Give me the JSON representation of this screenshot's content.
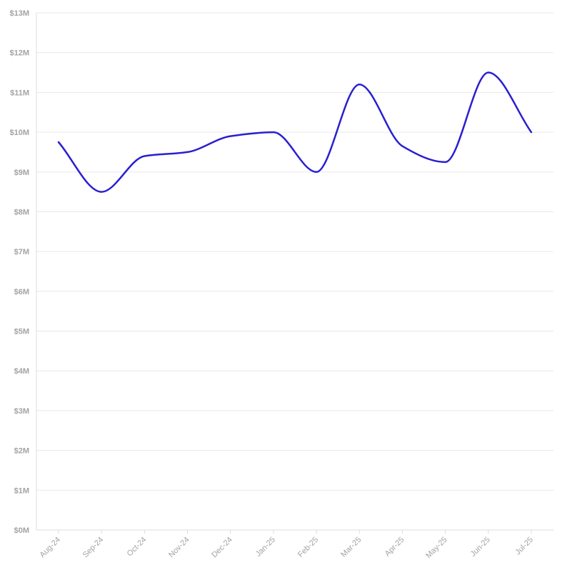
{
  "chart_data": {
    "type": "line",
    "title": "",
    "xlabel": "",
    "ylabel": "",
    "categories": [
      "Aug-24",
      "Sep-24",
      "Oct-24",
      "Nov-24",
      "Dec-24",
      "Jan-25",
      "Feb-25",
      "Mar-25",
      "Apr-25",
      "May-25",
      "Jun-25",
      "Jul-25"
    ],
    "y_ticks": [
      "$0M",
      "$1M",
      "$2M",
      "$3M",
      "$4M",
      "$5M",
      "$6M",
      "$7M",
      "$8M",
      "$9M",
      "$10M",
      "$11M",
      "$12M",
      "$13M"
    ],
    "ylim": [
      0,
      13
    ],
    "y_unit": "$M",
    "series": [
      {
        "values": [
          9.75,
          8.5,
          9.4,
          9.5,
          9.9,
          10.0,
          9.0,
          11.2,
          9.65,
          9.25,
          11.5,
          10.0
        ],
        "color": "#2a1fd0"
      }
    ],
    "grid": true,
    "grid_color": "#e8e8e8",
    "axis_color": "#dcdcdc",
    "label_color": "#a3a3a3",
    "legend": "none"
  }
}
